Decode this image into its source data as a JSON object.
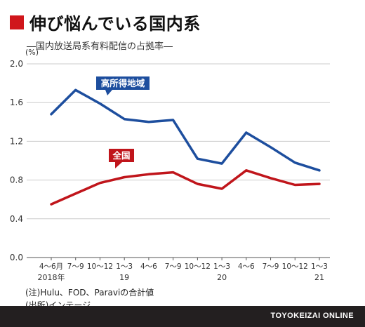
{
  "header": {
    "title": "伸び悩んでいる国内系",
    "subtitle": "―国内放送局系有料配信の占拠率―"
  },
  "chart_data": {
    "type": "line",
    "unit_label": "(%)",
    "ylim": [
      0,
      2.0
    ],
    "yticks": [
      "0.0",
      "0.4",
      "0.8",
      "1.2",
      "1.6",
      "2.0"
    ],
    "grid": true,
    "categories": [
      "4～6月",
      "7～9",
      "10～12",
      "1～3",
      "4～6",
      "7～9",
      "10～12",
      "1～3",
      "4～6",
      "7～9",
      "10～12",
      "1～3"
    ],
    "year_labels": [
      {
        "index": 0,
        "label": "2018年"
      },
      {
        "index": 3,
        "label": "19"
      },
      {
        "index": 7,
        "label": "20"
      },
      {
        "index": 11,
        "label": "21"
      }
    ],
    "series": [
      {
        "name": "高所得地域",
        "color": "#1d4e9e",
        "values": [
          1.48,
          1.73,
          1.59,
          1.43,
          1.4,
          1.42,
          1.02,
          0.97,
          1.29,
          1.14,
          0.98,
          0.9
        ]
      },
      {
        "name": "全国",
        "color": "#c0151b",
        "values": [
          0.55,
          0.66,
          0.77,
          0.83,
          0.86,
          0.88,
          0.76,
          0.71,
          0.9,
          0.82,
          0.75,
          0.76
        ]
      }
    ]
  },
  "notes": {
    "note": "(注)Hulu、FOD、Paraviの合計値",
    "source": "(出所)インテージ"
  },
  "footer": {
    "brand": "TOYOKEIZAI ONLINE"
  }
}
